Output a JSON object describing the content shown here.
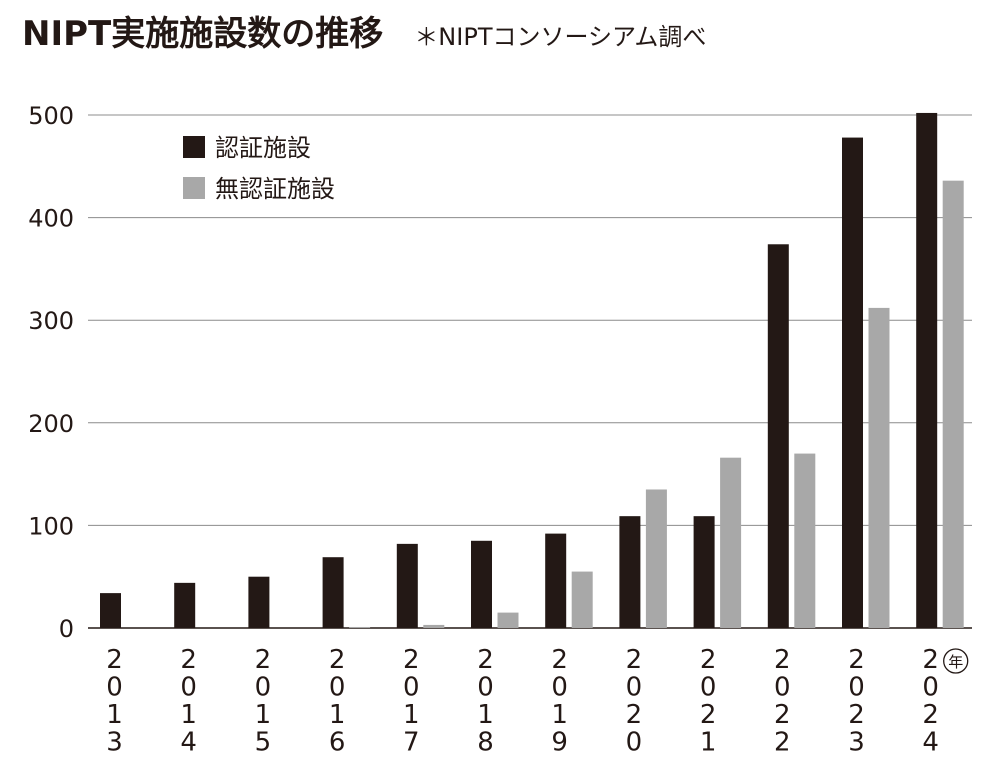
{
  "title": "NIPT実施施設数の推移",
  "source": "＊NIPTコンソーシアム調べ",
  "colors": {
    "certified": "#231815",
    "uncertified": "#a8a8a8",
    "grid": "#8c8c8c"
  },
  "chart_data": {
    "type": "bar",
    "categories": [
      "2013",
      "2014",
      "2015",
      "2016",
      "2017",
      "2018",
      "2019",
      "2020",
      "2021",
      "2022",
      "2023",
      "2024"
    ],
    "x_unit": "年",
    "series": [
      {
        "name": "認証施設",
        "values": [
          34,
          44,
          50,
          69,
          82,
          85,
          92,
          109,
          109,
          374,
          478,
          502
        ]
      },
      {
        "name": "無認証施設",
        "values": [
          0,
          0,
          0,
          1,
          3,
          15,
          55,
          135,
          166,
          170,
          312,
          436
        ]
      }
    ],
    "ylim": [
      0,
      500
    ],
    "yticks": [
      0,
      100,
      200,
      300,
      400,
      500
    ],
    "grid": true,
    "legend_position": "top-left"
  }
}
